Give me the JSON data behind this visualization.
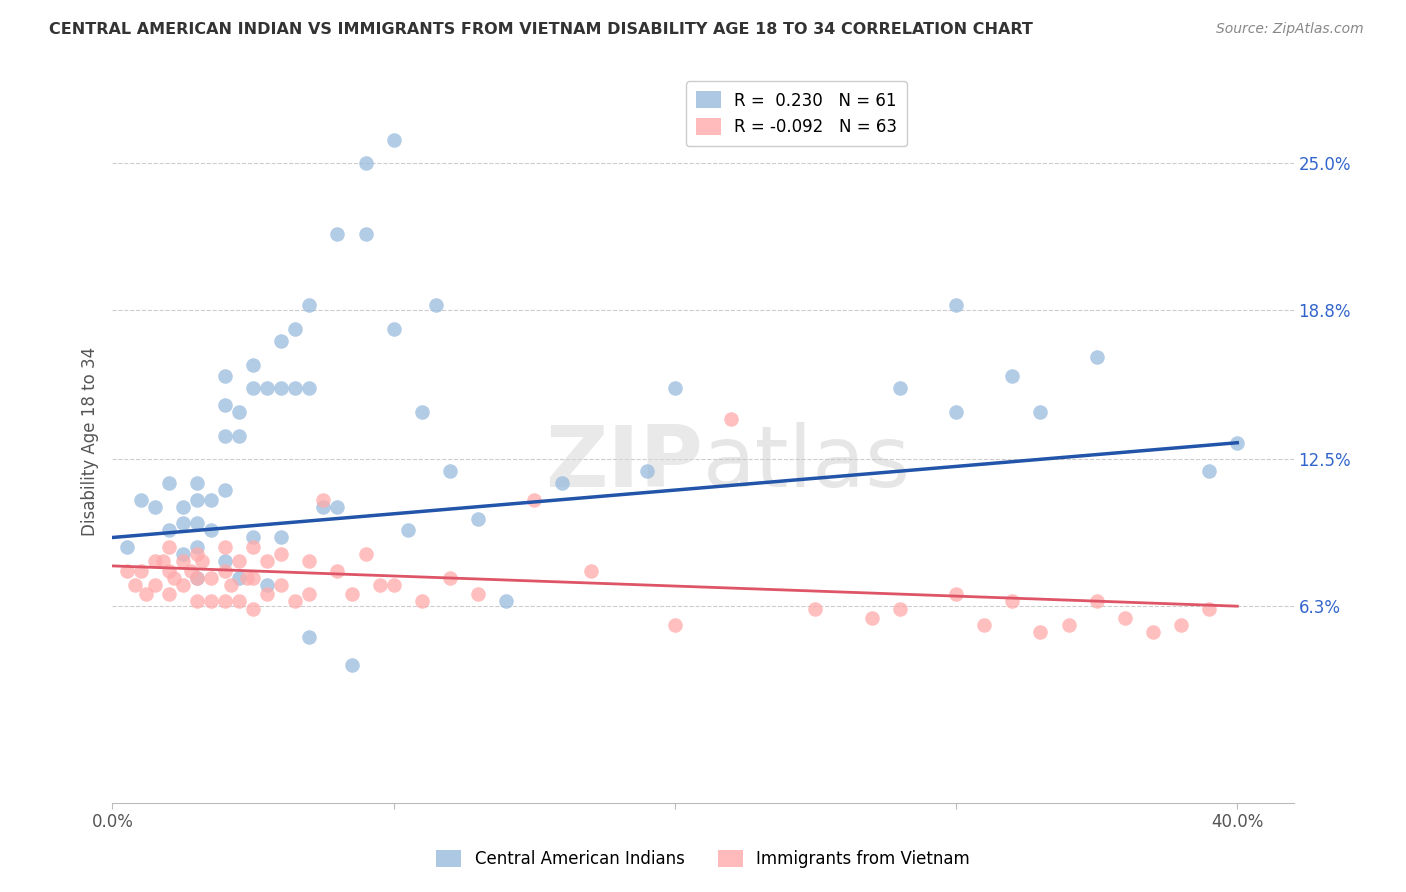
{
  "title": "CENTRAL AMERICAN INDIAN VS IMMIGRANTS FROM VIETNAM DISABILITY AGE 18 TO 34 CORRELATION CHART",
  "source": "Source: ZipAtlas.com",
  "ylabel": "Disability Age 18 to 34",
  "xlim": [
    0.0,
    0.42
  ],
  "ylim": [
    -0.02,
    0.285
  ],
  "ytick_positions": [
    0.063,
    0.125,
    0.188,
    0.25
  ],
  "ytick_labels": [
    "6.3%",
    "12.5%",
    "18.8%",
    "25.0%"
  ],
  "grid_color": "#cccccc",
  "background_color": "#ffffff",
  "legend_blue_label": "R =  0.230   N = 61",
  "legend_pink_label": "R = -0.092   N = 63",
  "legend_blue_color": "#99bbdd",
  "legend_pink_color": "#ffaaaa",
  "trend_blue_color": "#2255aa",
  "trend_pink_color": "#dd5566",
  "blue_trend_x0": 0.0,
  "blue_trend_y0": 0.092,
  "blue_trend_x1": 0.4,
  "blue_trend_y1": 0.132,
  "pink_trend_x0": 0.0,
  "pink_trend_y0": 0.08,
  "pink_trend_x1": 0.4,
  "pink_trend_y1": 0.063,
  "blue_x": [
    0.005,
    0.01,
    0.015,
    0.02,
    0.02,
    0.025,
    0.025,
    0.025,
    0.03,
    0.03,
    0.03,
    0.03,
    0.03,
    0.035,
    0.035,
    0.04,
    0.04,
    0.04,
    0.04,
    0.04,
    0.045,
    0.045,
    0.045,
    0.05,
    0.05,
    0.05,
    0.055,
    0.055,
    0.06,
    0.06,
    0.06,
    0.065,
    0.065,
    0.07,
    0.07,
    0.07,
    0.075,
    0.08,
    0.08,
    0.085,
    0.09,
    0.09,
    0.1,
    0.1,
    0.105,
    0.11,
    0.115,
    0.12,
    0.13,
    0.14,
    0.16,
    0.19,
    0.2,
    0.28,
    0.3,
    0.3,
    0.32,
    0.33,
    0.35,
    0.39,
    0.4
  ],
  "blue_y": [
    0.088,
    0.108,
    0.105,
    0.115,
    0.095,
    0.105,
    0.098,
    0.085,
    0.115,
    0.108,
    0.098,
    0.088,
    0.075,
    0.108,
    0.095,
    0.16,
    0.148,
    0.135,
    0.112,
    0.082,
    0.145,
    0.135,
    0.075,
    0.165,
    0.155,
    0.092,
    0.155,
    0.072,
    0.175,
    0.155,
    0.092,
    0.18,
    0.155,
    0.19,
    0.155,
    0.05,
    0.105,
    0.22,
    0.105,
    0.038,
    0.25,
    0.22,
    0.26,
    0.18,
    0.095,
    0.145,
    0.19,
    0.12,
    0.1,
    0.065,
    0.115,
    0.12,
    0.155,
    0.155,
    0.19,
    0.145,
    0.16,
    0.145,
    0.168,
    0.12,
    0.132
  ],
  "pink_x": [
    0.005,
    0.008,
    0.01,
    0.012,
    0.015,
    0.015,
    0.018,
    0.02,
    0.02,
    0.02,
    0.022,
    0.025,
    0.025,
    0.028,
    0.03,
    0.03,
    0.03,
    0.032,
    0.035,
    0.035,
    0.04,
    0.04,
    0.04,
    0.042,
    0.045,
    0.045,
    0.048,
    0.05,
    0.05,
    0.05,
    0.055,
    0.055,
    0.06,
    0.06,
    0.065,
    0.07,
    0.07,
    0.075,
    0.08,
    0.085,
    0.09,
    0.095,
    0.1,
    0.11,
    0.12,
    0.13,
    0.15,
    0.17,
    0.2,
    0.22,
    0.25,
    0.27,
    0.28,
    0.3,
    0.31,
    0.32,
    0.33,
    0.34,
    0.35,
    0.36,
    0.37,
    0.38,
    0.39
  ],
  "pink_y": [
    0.078,
    0.072,
    0.078,
    0.068,
    0.082,
    0.072,
    0.082,
    0.088,
    0.078,
    0.068,
    0.075,
    0.082,
    0.072,
    0.078,
    0.085,
    0.075,
    0.065,
    0.082,
    0.075,
    0.065,
    0.088,
    0.078,
    0.065,
    0.072,
    0.082,
    0.065,
    0.075,
    0.088,
    0.075,
    0.062,
    0.082,
    0.068,
    0.085,
    0.072,
    0.065,
    0.082,
    0.068,
    0.108,
    0.078,
    0.068,
    0.085,
    0.072,
    0.072,
    0.065,
    0.075,
    0.068,
    0.108,
    0.078,
    0.055,
    0.142,
    0.062,
    0.058,
    0.062,
    0.068,
    0.055,
    0.065,
    0.052,
    0.055,
    0.065,
    0.058,
    0.052,
    0.055,
    0.062
  ]
}
